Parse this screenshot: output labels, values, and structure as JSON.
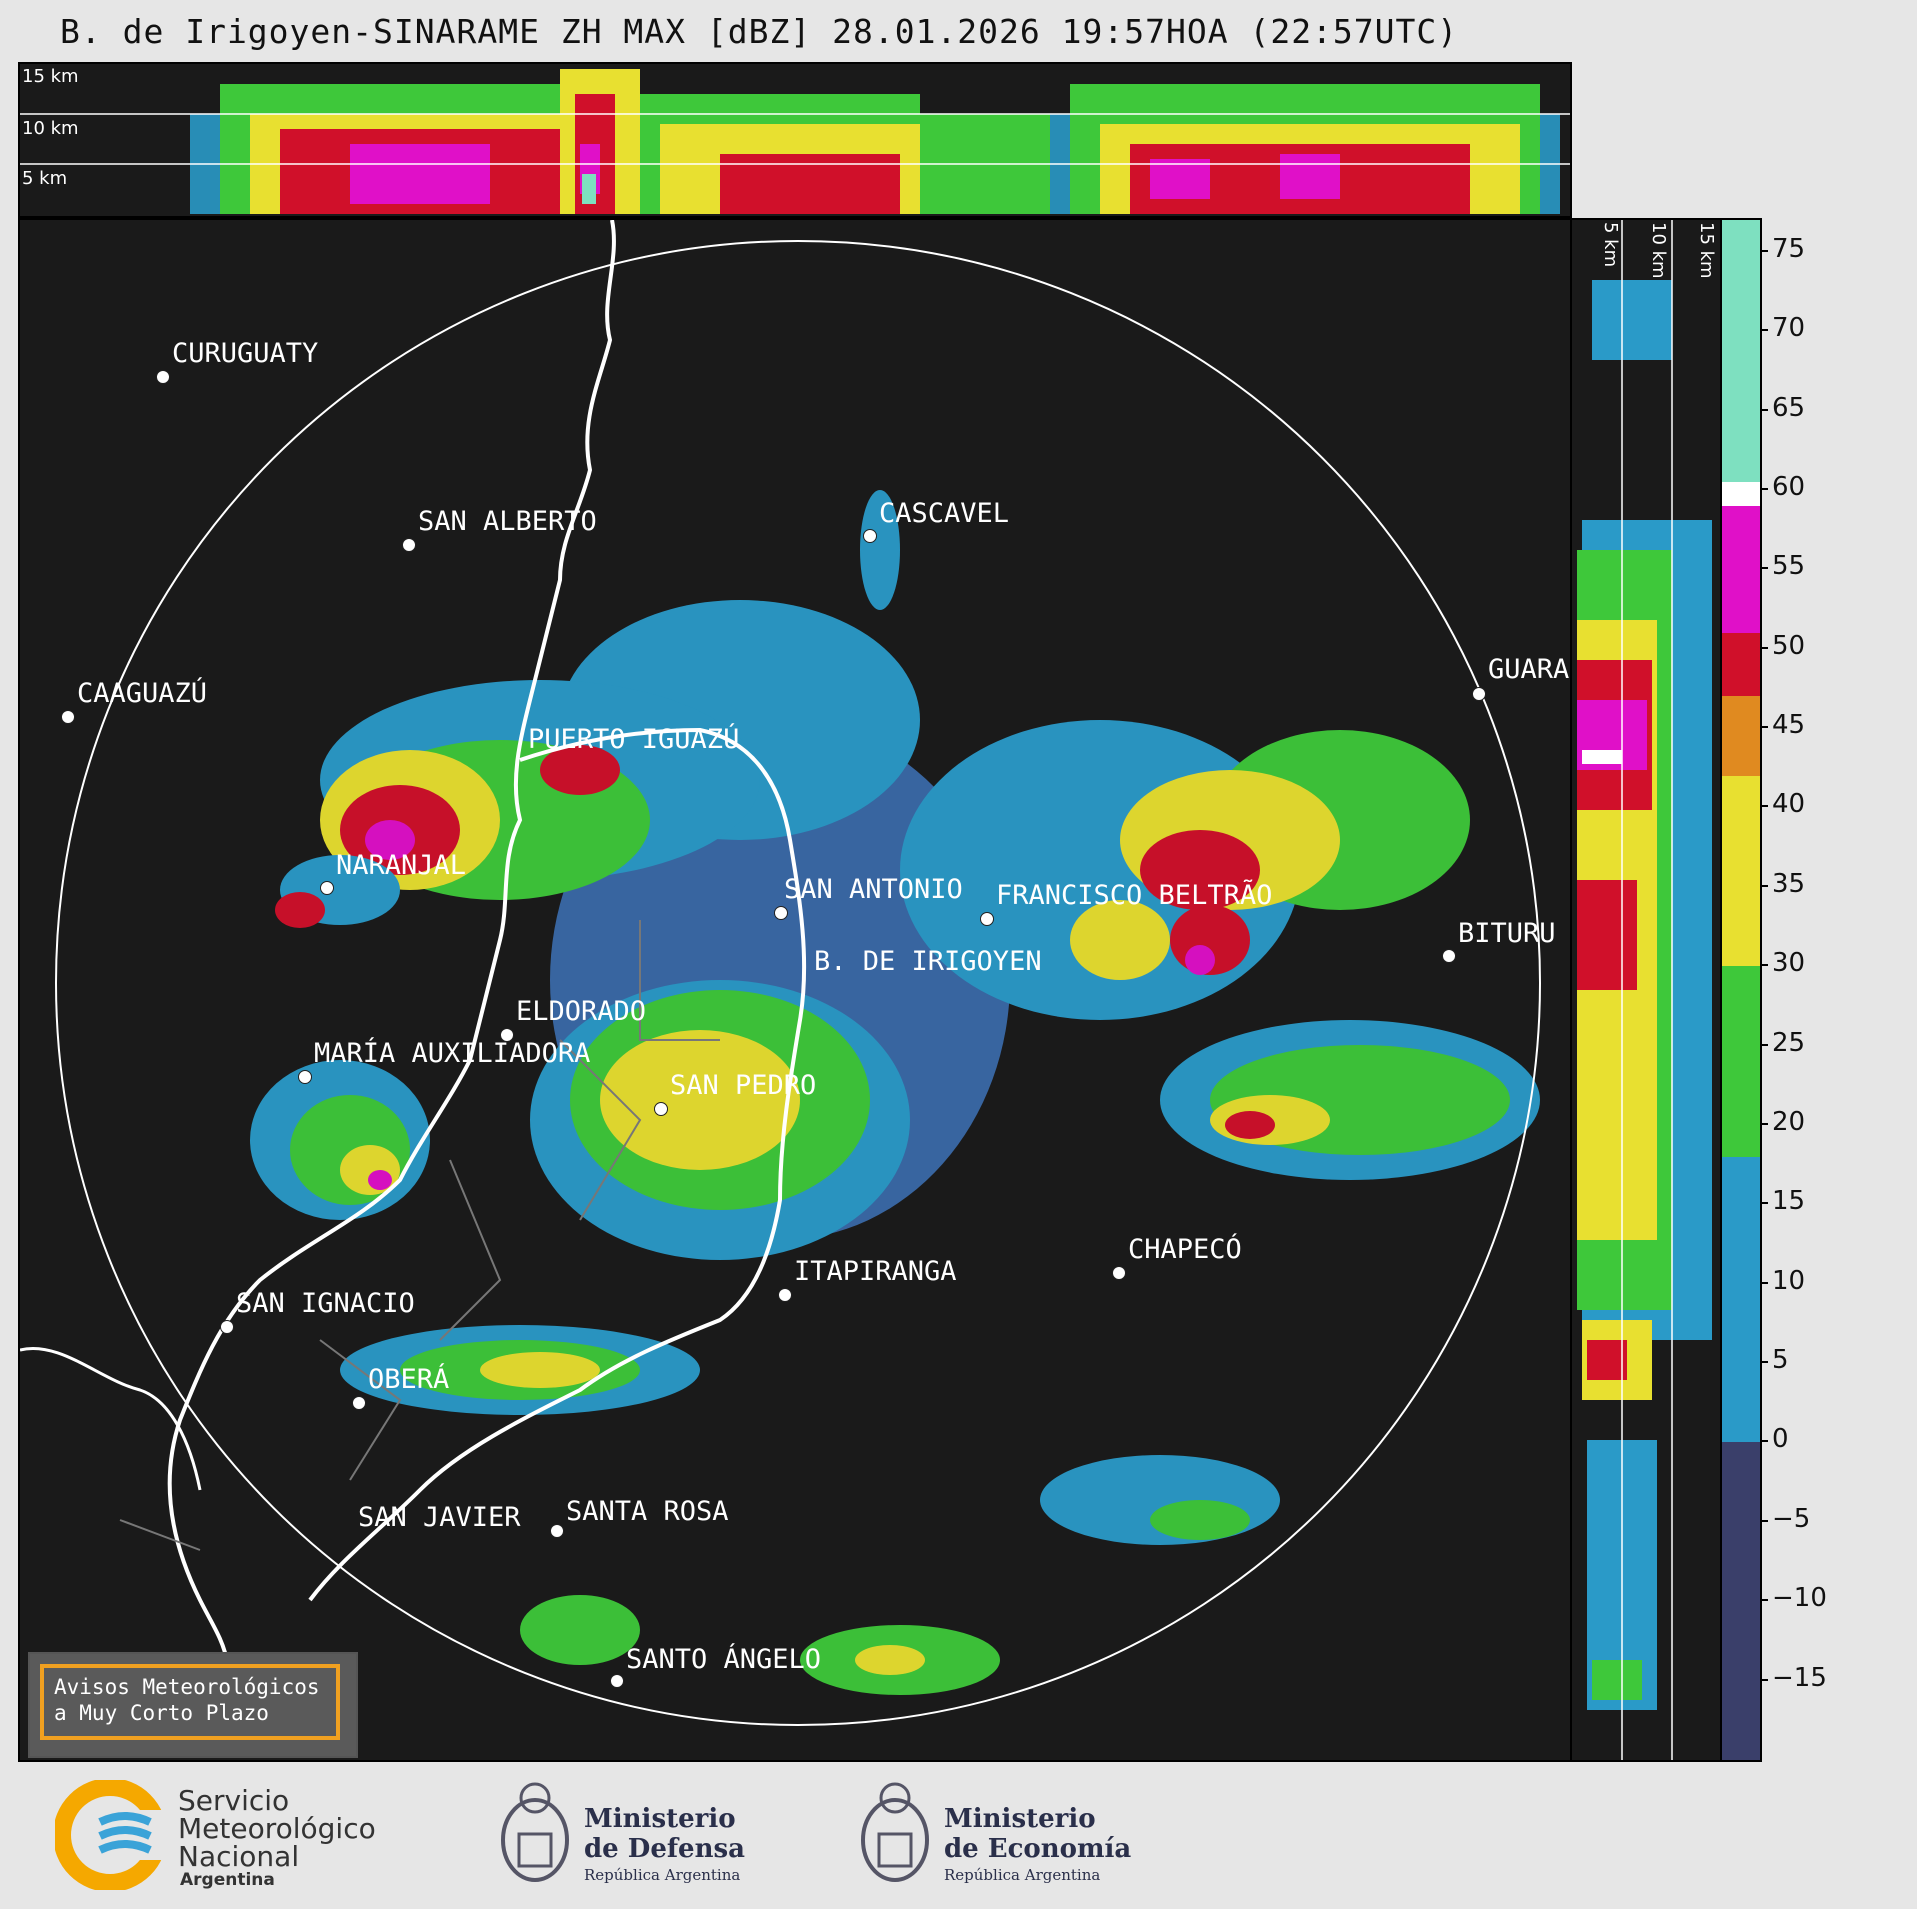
{
  "title": "B. de Irigoyen-SINARAME ZH MAX [dBZ] 28.01.2026 19:57HOA (22:57UTC)",
  "top_panel": {
    "height_labels": [
      "15 km",
      "10 km",
      "5 km"
    ]
  },
  "side_panel": {
    "height_labels": [
      "5 km",
      "10 km",
      "15 km"
    ]
  },
  "cities": [
    {
      "name": "CURUGUATY"
    },
    {
      "name": "SAN ALBERTO"
    },
    {
      "name": "CASCAVEL"
    },
    {
      "name": "CAAGUAZÚ"
    },
    {
      "name": "GUARA"
    },
    {
      "name": "PUERTO IGUAZÚ"
    },
    {
      "name": "NARANJAL"
    },
    {
      "name": "SAN ANTONIO"
    },
    {
      "name": "FRANCISCO BELTRÃO"
    },
    {
      "name": "BITURU"
    },
    {
      "name": "B. DE IRIGOYEN"
    },
    {
      "name": "ELDORADO"
    },
    {
      "name": "MARÍA AUXILIADORA"
    },
    {
      "name": "SAN PEDRO"
    },
    {
      "name": "CHAPECÓ"
    },
    {
      "name": "ITAPIRANGA"
    },
    {
      "name": "SAN IGNACIO"
    },
    {
      "name": "OBERÁ"
    },
    {
      "name": "SAN JAVIER"
    },
    {
      "name": "SANTA ROSA"
    },
    {
      "name": "SANTO ÁNGELO"
    }
  ],
  "colorbar": {
    "unit": "dBZ",
    "ticks": [
      "75",
      "70",
      "65",
      "60",
      "55",
      "50",
      "45",
      "40",
      "35",
      "30",
      "25",
      "20",
      "15",
      "10",
      "5",
      "0",
      "−5",
      "−10",
      "−15"
    ],
    "range": [
      -20,
      77
    ],
    "colors": {
      "dark": "#3a3f6a",
      "blue": "#2a9ac8",
      "green": "#3ec83a",
      "yellow": "#e8e030",
      "orange": "#e08a20",
      "red": "#d0102a",
      "magenta": "#e010c8",
      "white": "#ffffff",
      "aqua": "#7ee0c0"
    }
  },
  "notice": {
    "line1": "Avisos Meteorológicos",
    "line2": "a Muy Corto Plazo"
  },
  "logos": {
    "smn": {
      "l1": "Servicio",
      "l2": "Meteorológico",
      "l3": "Nacional",
      "l4": "Argentina"
    },
    "defensa": {
      "l1": "Ministerio",
      "l2": "de Defensa",
      "l3": "República Argentina"
    },
    "economia": {
      "l1": "Ministerio",
      "l2": "de Economía",
      "l3": "República Argentina"
    }
  }
}
